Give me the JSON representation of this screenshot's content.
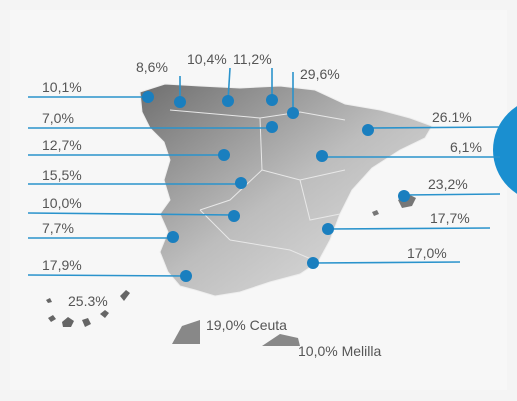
{
  "labels": [
    {
      "text": "10,1%"
    },
    {
      "text": "8,6%"
    },
    {
      "text": "10,4%"
    },
    {
      "text": "11,2%"
    },
    {
      "text": "29,6%"
    },
    {
      "text": "7,0%"
    },
    {
      "text": "12,7%"
    },
    {
      "text": "15,5%"
    },
    {
      "text": "10,0%"
    },
    {
      "text": "7,7%"
    },
    {
      "text": "17,9%"
    },
    {
      "text": "26.1%"
    },
    {
      "text": "6,1%"
    },
    {
      "text": "23,2%"
    },
    {
      "text": "17,7%"
    },
    {
      "text": "17,0%"
    },
    {
      "text": "25.3%"
    },
    {
      "text": "19,0% Ceuta"
    },
    {
      "text": "10,0% Melilla"
    }
  ]
}
